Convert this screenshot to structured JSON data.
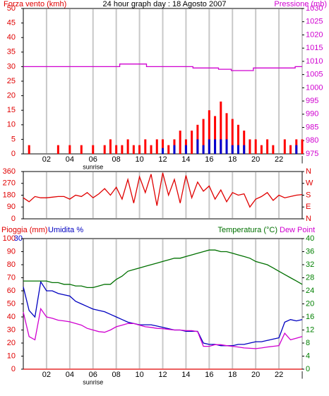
{
  "chart_data": [
    {
      "type": "combo",
      "title": "24 hour graph day : 18 Agosto 2007",
      "ylabel": "Forza vento (kmh)",
      "y2label": "Pressione (mb)",
      "x": [
        0,
        0.5,
        1,
        1.5,
        2,
        2.5,
        3,
        3.5,
        4,
        4.5,
        5,
        5.5,
        6,
        6.5,
        7,
        7.5,
        8,
        8.5,
        9,
        9.5,
        10,
        10.5,
        11,
        11.5,
        12,
        12.5,
        13,
        13.5,
        14,
        14.5,
        15,
        15.5,
        16,
        16.5,
        17,
        17.5,
        18,
        18.5,
        19,
        19.5,
        20,
        20.5,
        21,
        21.5,
        22,
        22.5,
        23,
        23.5,
        24
      ],
      "xlim": [
        0,
        24
      ],
      "xticks": [
        {
          "value": 2,
          "label": "02"
        },
        {
          "value": 4,
          "label": "04"
        },
        {
          "value": 6,
          "label": "06"
        },
        {
          "value": 8,
          "label": "08"
        },
        {
          "value": 10,
          "label": "10"
        },
        12,
        14,
        16,
        18,
        20,
        22,
        {
          "value": 24,
          "label": "|"
        }
      ],
      "annotations": [
        {
          "text": "sunrise",
          "x": 6
        }
      ],
      "ylim": [
        0,
        50
      ],
      "yticks": [
        0,
        5,
        10,
        15,
        20,
        25,
        30,
        35,
        40,
        45,
        50
      ],
      "ytick_color": "#e00000",
      "y2lim": [
        975,
        1030
      ],
      "y2ticks": [
        975,
        980,
        985,
        990,
        995,
        1000,
        1005,
        1010,
        1015,
        1020,
        1025,
        1030
      ],
      "y2tick_color": "#d000d0",
      "grid": true,
      "series": [
        {
          "type": "bar",
          "color": "#ff0000",
          "values": [
            0,
            3,
            0,
            0,
            0,
            0,
            3,
            0,
            3,
            0,
            3,
            0,
            3,
            0,
            3,
            5,
            3,
            3,
            5,
            3,
            3,
            5,
            3,
            5,
            5,
            3,
            5,
            8,
            5,
            8,
            10,
            12,
            15,
            13,
            18,
            14,
            12,
            10,
            8,
            5,
            5,
            3,
            5,
            3,
            0,
            5,
            3,
            5,
            5
          ]
        },
        {
          "type": "bar",
          "color": "#0000d0",
          "values": [
            0,
            0,
            0,
            0,
            0,
            0,
            0,
            0,
            0,
            0,
            0,
            0,
            0,
            0,
            0,
            0,
            0,
            0,
            0,
            0,
            0,
            0,
            0,
            0,
            2,
            0,
            3,
            0,
            3,
            0,
            5,
            3,
            5,
            5,
            5,
            5,
            3,
            3,
            3,
            0,
            0,
            0,
            0,
            0,
            0,
            0,
            0,
            3,
            0
          ]
        },
        {
          "type": "line",
          "axis": "y2",
          "color": "#d000d0",
          "x": [
            0,
            8.3,
            8.3,
            10.6,
            10.6,
            14.6,
            14.6,
            16.8,
            16.8,
            17.9,
            17.9,
            19.8,
            19.8,
            23.4,
            23.4,
            24
          ],
          "values": [
            1008,
            1008,
            1009,
            1009,
            1008,
            1008,
            1007.5,
            1007.5,
            1007,
            1007,
            1006.5,
            1006.5,
            1007.5,
            1007.5,
            1008,
            1008
          ]
        }
      ]
    },
    {
      "type": "line",
      "x": [
        0,
        0.5,
        1,
        1.5,
        2,
        2.5,
        3,
        3.5,
        4,
        4.5,
        5,
        5.5,
        6,
        6.5,
        7,
        7.5,
        8,
        8.5,
        9,
        9.5,
        10,
        10.5,
        11,
        11.5,
        12,
        12.5,
        13,
        13.5,
        14,
        14.5,
        15,
        15.5,
        16,
        16.5,
        17,
        17.5,
        18,
        18.5,
        19,
        19.5,
        20,
        20.5,
        21,
        21.5,
        22,
        22.5,
        23,
        23.5,
        24
      ],
      "xlim": [
        0,
        24
      ],
      "xticks": [
        2,
        4,
        6,
        8,
        10,
        12,
        14,
        16,
        18,
        20,
        22
      ],
      "show_xtick_labels": false,
      "ylim": [
        0,
        360
      ],
      "yticks": [
        0,
        90,
        180,
        270,
        360
      ],
      "ytick_color": "#e00000",
      "y2lim": [
        0,
        360
      ],
      "y2ticks": [
        {
          "value": 0,
          "label": "N"
        },
        {
          "value": 90,
          "label": "E"
        },
        {
          "value": 180,
          "label": "S"
        },
        {
          "value": 270,
          "label": "W"
        },
        {
          "value": 360,
          "label": "N"
        }
      ],
      "y2tick_color": "#e00000",
      "grid": true,
      "series": [
        {
          "color": "#e00000",
          "values": [
            160,
            130,
            170,
            160,
            160,
            165,
            170,
            170,
            150,
            180,
            170,
            200,
            160,
            190,
            230,
            180,
            240,
            150,
            300,
            120,
            320,
            200,
            340,
            100,
            350,
            180,
            300,
            120,
            330,
            160,
            280,
            210,
            250,
            150,
            220,
            130,
            200,
            180,
            190,
            90,
            150,
            170,
            200,
            140,
            180,
            160,
            170,
            180,
            185
          ]
        }
      ]
    },
    {
      "type": "line",
      "x": [
        0,
        0.5,
        1,
        1.5,
        2,
        2.5,
        3,
        3.5,
        4,
        4.5,
        5,
        5.5,
        6,
        6.5,
        7,
        7.5,
        8,
        8.5,
        9,
        9.5,
        10,
        10.5,
        11,
        11.5,
        12,
        12.5,
        13,
        13.5,
        14,
        14.5,
        15,
        15.5,
        16,
        16.5,
        17,
        17.5,
        18,
        18.5,
        19,
        19.5,
        20,
        20.5,
        21,
        21.5,
        22,
        22.5,
        23,
        23.5,
        24
      ],
      "xlim": [
        0,
        24
      ],
      "xticks": [
        {
          "value": 2,
          "label": "02"
        },
        {
          "value": 4,
          "label": "04"
        },
        {
          "value": 6,
          "label": "06"
        },
        {
          "value": 8,
          "label": "08"
        },
        {
          "value": 10,
          "label": "10"
        },
        12,
        14,
        16,
        18,
        20,
        22,
        {
          "value": 24,
          "label": "|"
        }
      ],
      "annotations": [
        {
          "text": "sunrise",
          "x": 6
        }
      ],
      "ylim": [
        0,
        100
      ],
      "yticks": [
        0,
        10,
        20,
        30,
        40,
        50,
        60,
        70,
        80,
        90,
        100
      ],
      "ytick_color": "#e00000",
      "y3lim": [
        0,
        30
      ],
      "y3ticks": [
        30
      ],
      "y3tick_color": "#0000d0",
      "y2lim": [
        0,
        40
      ],
      "y2ticks": [
        0,
        4,
        8,
        12,
        16,
        20,
        24,
        28,
        32,
        36,
        40
      ],
      "y2tick_color": "#008000",
      "grid": true,
      "series": [
        {
          "name": "Pioggia (mm)",
          "color": "#e00000",
          "values": [
            0,
            0,
            0,
            0,
            0,
            0,
            0,
            0,
            0,
            0,
            0,
            0,
            0,
            0,
            0,
            0,
            0,
            0,
            0,
            0,
            0,
            0,
            0,
            0,
            0,
            0,
            0,
            0,
            0,
            0,
            0,
            0,
            0,
            0,
            0,
            0,
            0,
            0,
            0,
            0,
            0,
            0,
            0,
            0,
            0,
            0,
            0,
            0,
            0
          ]
        },
        {
          "name": "Umidita %",
          "color": "#0000c0",
          "values": [
            63,
            45,
            40,
            67,
            60,
            60,
            58,
            57,
            56,
            52,
            50,
            48,
            46,
            45,
            44,
            42,
            40,
            38,
            36,
            35,
            34,
            34,
            34,
            33,
            32,
            31,
            30,
            30,
            29,
            29,
            29,
            20,
            19,
            19,
            18,
            18,
            18,
            19,
            19,
            20,
            21,
            21,
            22,
            23,
            24,
            36,
            38,
            37,
            38
          ]
        },
        {
          "name": "Temperatura (°C)",
          "axis": "y2",
          "color": "#007000",
          "values": [
            27,
            27,
            27,
            27,
            27,
            26.5,
            26.5,
            26,
            26,
            25.5,
            25.5,
            25,
            25,
            25.5,
            26,
            26,
            27.5,
            28.5,
            30,
            30.5,
            31,
            31.5,
            32,
            32.5,
            33,
            33.5,
            34,
            34,
            34.5,
            35,
            35.5,
            36,
            36.5,
            36.5,
            36,
            36,
            35.5,
            35,
            34.5,
            34,
            33,
            32.5,
            32,
            31,
            30,
            29,
            28,
            27,
            26
          ]
        },
        {
          "name": "Dew Point",
          "axis": "y2",
          "color": "#d000d0",
          "values": [
            17.5,
            10,
            9,
            18.5,
            16,
            15.6,
            15,
            14.8,
            14.5,
            14,
            13.5,
            12.5,
            12,
            11.5,
            11.3,
            12,
            13,
            13.5,
            14,
            14,
            13.5,
            13,
            12.8,
            12.5,
            12.4,
            12.2,
            12,
            12,
            11.8,
            11.8,
            11.5,
            7,
            7,
            7.5,
            7.5,
            7.2,
            7,
            6.8,
            6.5,
            6.4,
            6.3,
            6.5,
            6.8,
            7,
            7.2,
            11,
            9,
            9.5,
            10
          ]
        }
      ]
    }
  ]
}
